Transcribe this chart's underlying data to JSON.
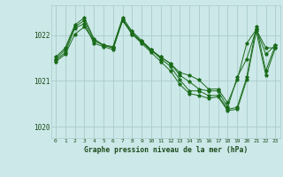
{
  "background_color": "#cce8e8",
  "grid_color": "#aacccc",
  "line_color": "#1a6b1a",
  "title": "Graphe pression niveau de la mer (hPa)",
  "ylim": [
    1019.75,
    1022.65
  ],
  "yticks": [
    1020,
    1021,
    1022
  ],
  "xlim": [
    -0.5,
    23.5
  ],
  "xticks": [
    0,
    1,
    2,
    3,
    4,
    5,
    6,
    7,
    8,
    9,
    10,
    11,
    12,
    13,
    14,
    15,
    16,
    17,
    18,
    19,
    20,
    21,
    22,
    23
  ],
  "series": [
    [
      1021.45,
      1021.62,
      1022.15,
      1022.25,
      1021.82,
      1021.75,
      1021.68,
      1022.32,
      1022.02,
      1021.85,
      1021.68,
      1021.52,
      1021.38,
      1021.18,
      1021.12,
      1021.02,
      1020.82,
      1020.82,
      1020.52,
      1021.02,
      1021.82,
      1022.12,
      1021.72,
      1021.72
    ],
    [
      1021.52,
      1021.72,
      1022.22,
      1022.38,
      1021.92,
      1021.78,
      1021.75,
      1022.38,
      1022.08,
      1021.88,
      1021.68,
      1021.48,
      1021.32,
      1021.02,
      1020.78,
      1020.78,
      1020.68,
      1020.68,
      1020.38,
      1020.42,
      1021.08,
      1022.18,
      1021.22,
      1021.78
    ],
    [
      1021.48,
      1021.68,
      1022.18,
      1022.32,
      1021.88,
      1021.78,
      1021.72,
      1022.35,
      1022.05,
      1021.85,
      1021.65,
      1021.52,
      1021.38,
      1021.12,
      1020.98,
      1020.82,
      1020.78,
      1020.78,
      1020.42,
      1021.08,
      1021.48,
      1022.12,
      1021.58,
      1021.78
    ],
    [
      1021.42,
      1021.58,
      1022.02,
      1022.18,
      1021.88,
      1021.78,
      1021.72,
      1022.32,
      1022.02,
      1021.82,
      1021.62,
      1021.42,
      1021.22,
      1020.92,
      1020.72,
      1020.68,
      1020.62,
      1020.65,
      1020.35,
      1020.38,
      1021.02,
      1022.08,
      1021.12,
      1021.72
    ]
  ]
}
